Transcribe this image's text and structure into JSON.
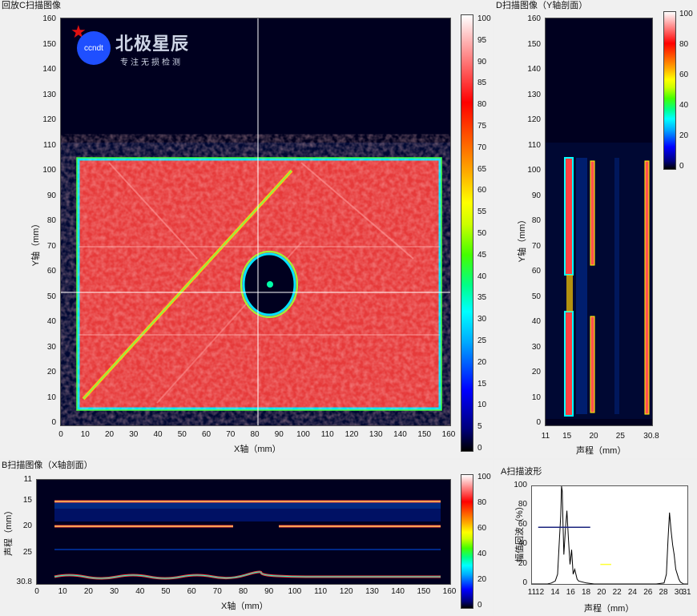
{
  "cscan": {
    "title": "回放C扫描图像",
    "xlabel": "X轴（mm）",
    "ylabel": "Y轴（mm）",
    "xticks": [
      "0",
      "10",
      "20",
      "30",
      "40",
      "50",
      "60",
      "70",
      "80",
      "90",
      "100",
      "110",
      "120",
      "130",
      "140",
      "150",
      "160"
    ],
    "yticks": [
      "0",
      "10",
      "20",
      "30",
      "40",
      "50",
      "60",
      "70",
      "80",
      "90",
      "100",
      "110",
      "120",
      "130",
      "140",
      "150",
      "160"
    ],
    "cbar_ticks": [
      "0",
      "5",
      "10",
      "15",
      "20",
      "25",
      "30",
      "35",
      "40",
      "45",
      "50",
      "55",
      "60",
      "65",
      "70",
      "75",
      "80",
      "85",
      "90",
      "95",
      "100"
    ],
    "logo_text": "ccndt",
    "brand_name": "北极星辰",
    "brand_slogan": "专注无损检测"
  },
  "dscan": {
    "title": "D扫描图像（Y轴剖面）",
    "xlabel": "声程（mm）",
    "ylabel": "Y轴（mm）",
    "xticks": [
      "11",
      "15",
      "20",
      "25",
      "30.8"
    ],
    "yticks": [
      "0",
      "10",
      "20",
      "30",
      "40",
      "50",
      "60",
      "70",
      "80",
      "90",
      "100",
      "110",
      "120",
      "130",
      "140",
      "150",
      "160"
    ],
    "cbar_ticks": [
      "0",
      "20",
      "40",
      "60",
      "80",
      "100"
    ]
  },
  "bscan": {
    "title": "B扫描图像（X轴剖面）",
    "xlabel": "X轴（mm）",
    "ylabel": "声程（mm）",
    "xticks": [
      "0",
      "10",
      "20",
      "30",
      "40",
      "50",
      "60",
      "70",
      "80",
      "90",
      "100",
      "110",
      "120",
      "130",
      "140",
      "150",
      "160"
    ],
    "yticks": [
      "11",
      "15",
      "20",
      "25",
      "30.8"
    ],
    "cbar_ticks": [
      "0",
      "20",
      "40",
      "60",
      "80",
      "100"
    ]
  },
  "ascan": {
    "title": "A扫描波形",
    "xlabel": "声程（mm）",
    "ylabel": "幅值回波（%）",
    "xticks": [
      "11",
      "12",
      "14",
      "16",
      "18",
      "20",
      "22",
      "24",
      "26",
      "28",
      "30",
      "31"
    ],
    "yticks": [
      "0",
      "20",
      "40",
      "60",
      "80",
      "100"
    ]
  },
  "chart_data": {
    "type": "line",
    "title": "A扫描波形",
    "xlabel": "声程（mm）",
    "ylabel": "幅值回波（%）",
    "xlim": [
      11,
      31
    ],
    "ylim": [
      0,
      100
    ],
    "series": [
      {
        "x": [
          11,
          13,
          13.5,
          14,
          14.3,
          14.5,
          14.7,
          14.8,
          14.9,
          15.0,
          15.1,
          15.3,
          15.5,
          15.7,
          15.9,
          16.1,
          16.3,
          16.5,
          16.8,
          17,
          18,
          19,
          20,
          21,
          22,
          23,
          24,
          25,
          26,
          27,
          28,
          28.3,
          28.5,
          28.7,
          28.9,
          29.1,
          29.3,
          29.5,
          29.7,
          29.9,
          30.1,
          30.3,
          30.5,
          30.8,
          31
        ],
        "y": [
          0,
          0,
          1,
          3,
          10,
          40,
          70,
          100,
          95,
          60,
          30,
          55,
          75,
          45,
          20,
          35,
          10,
          15,
          5,
          3,
          1,
          0,
          0,
          0,
          0,
          0,
          0,
          0,
          0,
          0,
          1,
          10,
          45,
          73,
          55,
          40,
          30,
          15,
          10,
          5,
          2,
          1,
          0,
          0,
          0
        ]
      }
    ],
    "gate_blue": {
      "start": 11.8,
      "end": 18.5,
      "level": 58,
      "color": "#1a237e"
    },
    "gate_yellow": {
      "start": 19.8,
      "end": 21.2,
      "level": 20,
      "color": "#ffff33"
    }
  },
  "colors": {
    "plot_bg": "#00001f",
    "signal_red": "#ff2a2a",
    "accent_blue": "#1f4fff"
  }
}
